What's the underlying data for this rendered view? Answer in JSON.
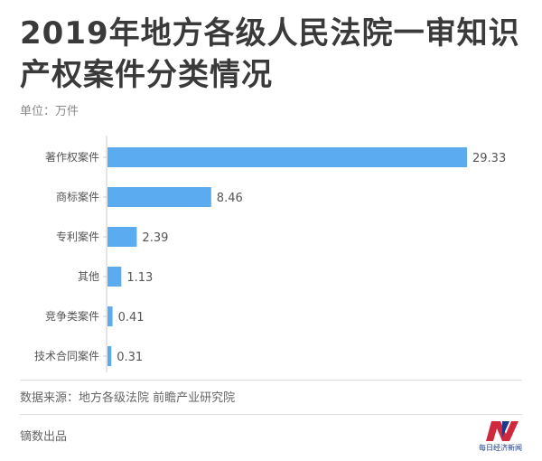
{
  "header": {
    "title": "2019年地方各级人民法院一审知识产权案件分类情况",
    "unit": "单位：万件"
  },
  "chart_data": {
    "type": "bar",
    "orientation": "horizontal",
    "title": "2019年地方各级人民法院一审知识产权案件分类情况",
    "unit": "万件",
    "categories": [
      "著作权案件",
      "商标案件",
      "专利案件",
      "其他",
      "竞争类案件",
      "技术合同案件"
    ],
    "values": [
      29.33,
      8.46,
      2.39,
      1.13,
      0.41,
      0.31
    ],
    "value_labels": [
      "29.33",
      "8.46",
      "2.39",
      "1.13",
      "0.41",
      "0.31"
    ],
    "bar_color": "#5aabf0",
    "xlim": [
      0,
      29.33
    ],
    "grid": false,
    "legend": "none"
  },
  "footer": {
    "source": "数据来源：地方各级法院 前瞻产业研究院",
    "credit": "镝数出品",
    "logo_text": "每日经济新闻",
    "logo_color": "#d0283c",
    "logo_accent": "#1b3a8c"
  }
}
